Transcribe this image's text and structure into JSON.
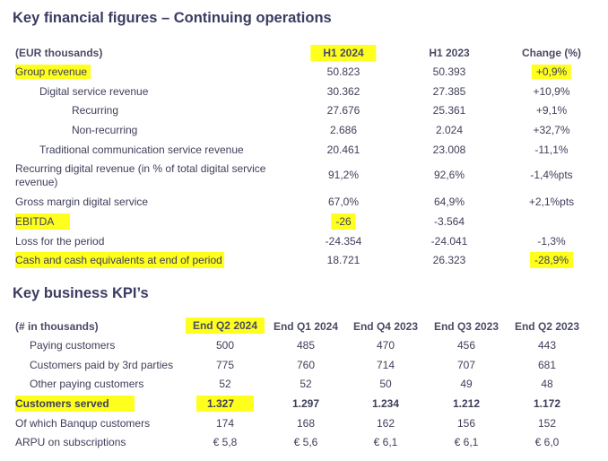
{
  "section1": {
    "title": "Key financial figures – Continuing operations",
    "header": {
      "label": "(EUR thousands)",
      "col1": "H1 2024",
      "col2": "H1 2023",
      "col3": "Change (%)"
    },
    "rows": [
      {
        "label": "Group revenue",
        "v1": "50.823",
        "v2": "50.393",
        "v3": "+0,9%"
      },
      {
        "label": "Digital service revenue",
        "v1": "30.362",
        "v2": "27.385",
        "v3": "+10,9%"
      },
      {
        "label": "Recurring",
        "v1": "27.676",
        "v2": "25.361",
        "v3": "+9,1%"
      },
      {
        "label": "Non-recurring",
        "v1": "2.686",
        "v2": "2.024",
        "v3": "+32,7%"
      },
      {
        "label": "Traditional communication service revenue",
        "v1": "20.461",
        "v2": "23.008",
        "v3": "-11,1%"
      },
      {
        "label": "Recurring digital revenue (in % of total digital service revenue)",
        "v1": "91,2%",
        "v2": "92,6%",
        "v3": "-1,4%pts"
      },
      {
        "label": "Gross margin digital service",
        "v1": "67,0%",
        "v2": "64,9%",
        "v3": "+2,1%pts"
      },
      {
        "label": "EBITDA",
        "v1": "-26",
        "v2": "-3.564",
        "v3": ""
      },
      {
        "label": "Loss for the period",
        "v1": "-24.354",
        "v2": "-24.041",
        "v3": "-1,3%"
      },
      {
        "label": "Cash and cash equivalents at end of period",
        "v1": "18.721",
        "v2": "26.323",
        "v3": "-28,9%"
      }
    ]
  },
  "section2": {
    "title": "Key business KPI’s",
    "header": {
      "label": "(# in thousands)",
      "c1": "End Q2 2024",
      "c2": "End Q1 2024",
      "c3": "End Q4 2023",
      "c4": "End Q3 2023",
      "c5": "End Q2 2023"
    },
    "rows": [
      {
        "label": "Paying customers",
        "c1": "500",
        "c2": "485",
        "c3": "470",
        "c4": "456",
        "c5": "443"
      },
      {
        "label": "Customers paid by 3rd parties",
        "c1": "775",
        "c2": "760",
        "c3": "714",
        "c4": "707",
        "c5": "681"
      },
      {
        "label": "Other paying customers",
        "c1": "52",
        "c2": "52",
        "c3": "50",
        "c4": "49",
        "c5": "48"
      },
      {
        "label": "Customers served",
        "c1": "1.327",
        "c2": "1.297",
        "c3": "1.234",
        "c4": "1.212",
        "c5": "1.172"
      },
      {
        "label": "Of which Banqup customers",
        "c1": "174",
        "c2": "168",
        "c3": "162",
        "c4": "156",
        "c5": "152"
      },
      {
        "label": "ARPU on subscriptions",
        "c1": "€ 5,8",
        "c2": "€ 5,6",
        "c3": "€ 6,1",
        "c4": "€ 6,1",
        "c5": "€ 6,0"
      }
    ]
  },
  "colors": {
    "highlight": "#ffff1e",
    "title": "#3b3b62",
    "text": "#3e3e5a"
  }
}
